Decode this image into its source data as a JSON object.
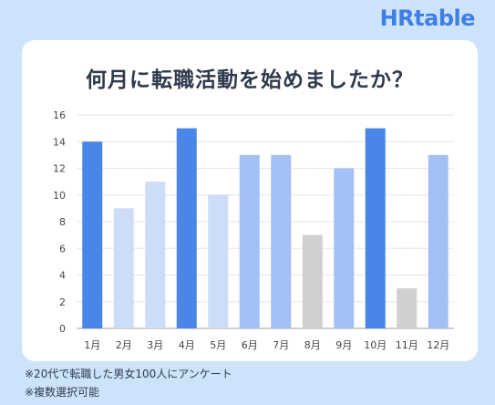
{
  "brand": {
    "logo_text": "HRtable",
    "color": "#3d7fe6"
  },
  "notes": [
    "※20代で転職した男女100人にアンケート",
    "※複数選択可能"
  ],
  "chart_data": {
    "type": "bar",
    "title": "何月に転職活動を始めましたか？",
    "xlabel": "",
    "ylabel": "",
    "categories": [
      "1月",
      "2月",
      "3月",
      "4月",
      "5月",
      "6月",
      "7月",
      "8月",
      "9月",
      "10月",
      "11月",
      "12月"
    ],
    "values": [
      14,
      9,
      11,
      15,
      10,
      13,
      13,
      7,
      12,
      15,
      3,
      13
    ],
    "bar_colors": [
      "#4a86e8",
      "#cddcf7",
      "#cddcf7",
      "#4a86e8",
      "#cddcf7",
      "#a3c0f4",
      "#a3c0f4",
      "#d0d0d0",
      "#a3c0f4",
      "#4a86e8",
      "#d0d0d0",
      "#a3c0f4"
    ],
    "ylim": [
      0,
      16
    ],
    "yticks": [
      0,
      2,
      4,
      6,
      8,
      10,
      12,
      14,
      16
    ],
    "grid": true,
    "legend": "none"
  }
}
